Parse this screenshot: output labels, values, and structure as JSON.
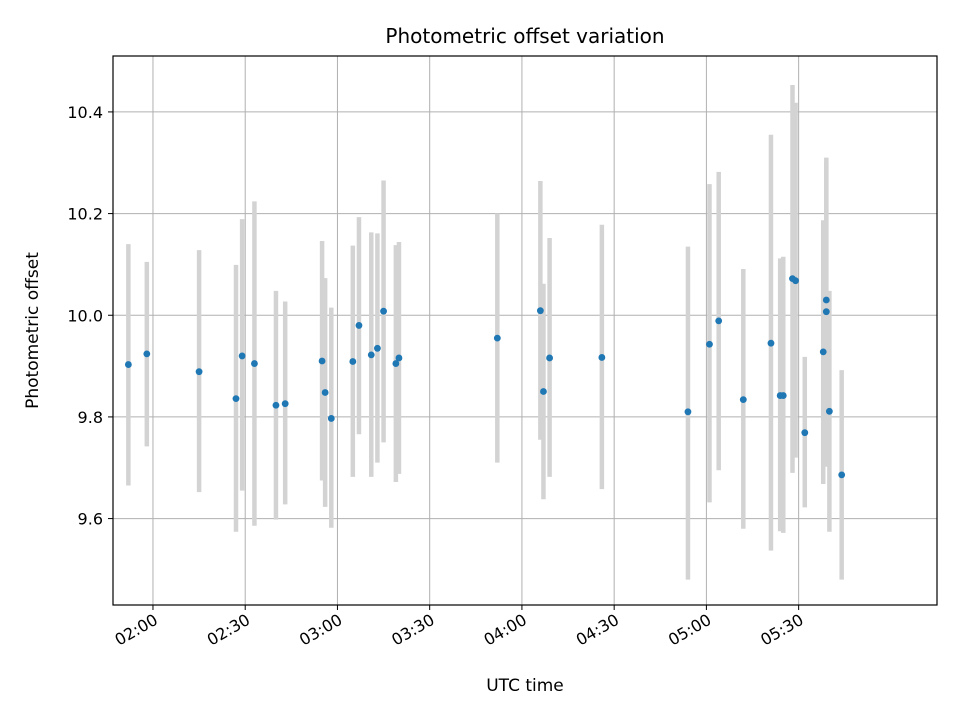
{
  "chart_data": {
    "type": "scatter",
    "title": "Photometric offset variation",
    "xlabel": "UTC time",
    "ylabel": "Photometric offset",
    "x_axis_kind": "time",
    "xlim": [
      "01:47",
      "06:15"
    ],
    "ylim": [
      9.43,
      10.51
    ],
    "x_ticks": [
      "02:00",
      "02:30",
      "03:00",
      "03:30",
      "04:00",
      "04:30",
      "05:00",
      "05:30"
    ],
    "y_ticks": [
      9.6,
      9.8,
      10.0,
      10.2,
      10.4
    ],
    "grid": true,
    "colors": {
      "point": "#1f77b4",
      "errorbar": "#d3d3d3",
      "grid": "#b0b0b0"
    },
    "points": [
      {
        "t": "01:52",
        "y": 9.903,
        "low": 9.665,
        "high": 10.14
      },
      {
        "t": "01:58",
        "y": 9.924,
        "low": 9.742,
        "high": 10.105
      },
      {
        "t": "02:15",
        "y": 9.889,
        "low": 9.652,
        "high": 10.128
      },
      {
        "t": "02:27",
        "y": 9.836,
        "low": 9.574,
        "high": 10.099
      },
      {
        "t": "02:29",
        "y": 9.92,
        "low": 9.655,
        "high": 10.189
      },
      {
        "t": "02:33",
        "y": 9.905,
        "low": 9.586,
        "high": 10.224
      },
      {
        "t": "02:40",
        "y": 9.823,
        "low": 9.598,
        "high": 10.048
      },
      {
        "t": "02:43",
        "y": 9.826,
        "low": 9.628,
        "high": 10.027
      },
      {
        "t": "02:55",
        "y": 9.91,
        "low": 9.675,
        "high": 10.146
      },
      {
        "t": "02:56",
        "y": 9.848,
        "low": 9.623,
        "high": 10.073
      },
      {
        "t": "02:58",
        "y": 9.797,
        "low": 9.582,
        "high": 10.015
      },
      {
        "t": "03:05",
        "y": 9.909,
        "low": 9.682,
        "high": 10.137
      },
      {
        "t": "03:07",
        "y": 9.98,
        "low": 9.766,
        "high": 10.193
      },
      {
        "t": "03:11",
        "y": 9.922,
        "low": 9.682,
        "high": 10.163
      },
      {
        "t": "03:13",
        "y": 9.935,
        "low": 9.71,
        "high": 10.161
      },
      {
        "t": "03:15",
        "y": 10.008,
        "low": 9.75,
        "high": 10.265
      },
      {
        "t": "03:19",
        "y": 9.905,
        "low": 9.672,
        "high": 10.138
      },
      {
        "t": "03:20",
        "y": 9.916,
        "low": 9.688,
        "high": 10.144
      },
      {
        "t": "03:52",
        "y": 9.955,
        "low": 9.71,
        "high": 10.2
      },
      {
        "t": "04:06",
        "y": 10.009,
        "low": 9.755,
        "high": 10.264
      },
      {
        "t": "04:07",
        "y": 9.85,
        "low": 9.638,
        "high": 10.062
      },
      {
        "t": "04:09",
        "y": 9.916,
        "low": 9.682,
        "high": 10.152
      },
      {
        "t": "04:26",
        "y": 9.917,
        "low": 9.658,
        "high": 10.178
      },
      {
        "t": "04:54",
        "y": 9.81,
        "low": 9.48,
        "high": 10.135
      },
      {
        "t": "05:01",
        "y": 9.943,
        "low": 9.632,
        "high": 10.258
      },
      {
        "t": "05:04",
        "y": 9.989,
        "low": 9.695,
        "high": 10.282
      },
      {
        "t": "05:12",
        "y": 9.834,
        "low": 9.58,
        "high": 10.091
      },
      {
        "t": "05:21",
        "y": 9.945,
        "low": 9.537,
        "high": 10.355
      },
      {
        "t": "05:24",
        "y": 9.842,
        "low": 9.575,
        "high": 10.112
      },
      {
        "t": "05:25",
        "y": 9.842,
        "low": 9.572,
        "high": 10.115
      },
      {
        "t": "05:28",
        "y": 10.072,
        "low": 9.69,
        "high": 10.453
      },
      {
        "t": "05:29",
        "y": 10.068,
        "low": 9.72,
        "high": 10.418
      },
      {
        "t": "05:32",
        "y": 9.769,
        "low": 9.622,
        "high": 9.918
      },
      {
        "t": "05:38",
        "y": 9.928,
        "low": 9.668,
        "high": 10.187
      },
      {
        "t": "05:39",
        "y": 10.03,
        "low": 9.758,
        "high": 10.302
      },
      {
        "t": "05:39",
        "y": 10.007,
        "low": 9.702,
        "high": 10.31
      },
      {
        "t": "05:40",
        "y": 9.811,
        "low": 9.574,
        "high": 10.048
      },
      {
        "t": "05:44",
        "y": 9.686,
        "low": 9.48,
        "high": 9.892
      }
    ]
  }
}
